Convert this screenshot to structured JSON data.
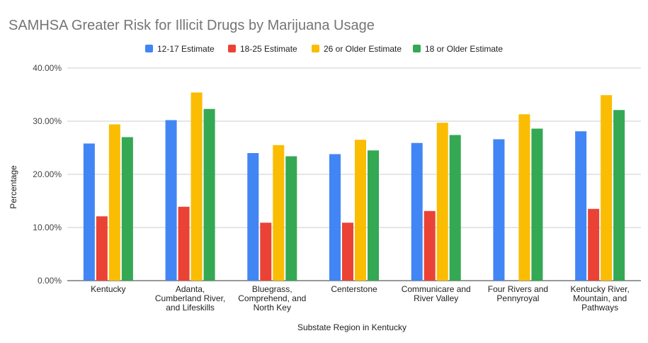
{
  "chart_data": {
    "type": "bar",
    "title": "SAMHSA Greater Risk for Illicit Drugs by Marijuana Usage",
    "xlabel": "Substate Region in Kentucky",
    "ylabel": "Percentage",
    "ylim": [
      0,
      0.4
    ],
    "yticks": [
      {
        "value": 0.0,
        "label": "0.00%"
      },
      {
        "value": 0.1,
        "label": "10.00%"
      },
      {
        "value": 0.2,
        "label": "20.00%"
      },
      {
        "value": 0.3,
        "label": "30.00%"
      },
      {
        "value": 0.4,
        "label": "40.00%"
      }
    ],
    "grid": true,
    "legend_position": "top",
    "categories": [
      [
        "Kentucky"
      ],
      [
        "Adanta,",
        "Cumberland River,",
        "and Lifeskills"
      ],
      [
        "Bluegrass,",
        "Comprehend, and",
        "North Key"
      ],
      [
        "Centerstone"
      ],
      [
        "Communicare and",
        "River Valley"
      ],
      [
        "Four Rivers and",
        "Pennyroyal"
      ],
      [
        "Kentucky River,",
        "Mountain, and",
        "Pathways"
      ]
    ],
    "series": [
      {
        "name": "12-17 Estimate",
        "color": "#4285f4",
        "values": [
          0.258,
          0.302,
          0.24,
          0.238,
          0.259,
          0.266,
          0.281
        ]
      },
      {
        "name": "18-25 Estimate",
        "color": "#ea4335",
        "values": [
          0.121,
          0.139,
          0.109,
          0.109,
          0.131,
          null,
          0.135
        ]
      },
      {
        "name": "26 or Older Estimate",
        "color": "#fbbc04",
        "values": [
          0.294,
          0.354,
          0.255,
          0.265,
          0.297,
          0.313,
          0.349
        ]
      },
      {
        "name": "18 or Older Estimate",
        "color": "#34a853",
        "values": [
          0.27,
          0.323,
          0.234,
          0.245,
          0.274,
          0.286,
          0.321
        ]
      }
    ]
  }
}
